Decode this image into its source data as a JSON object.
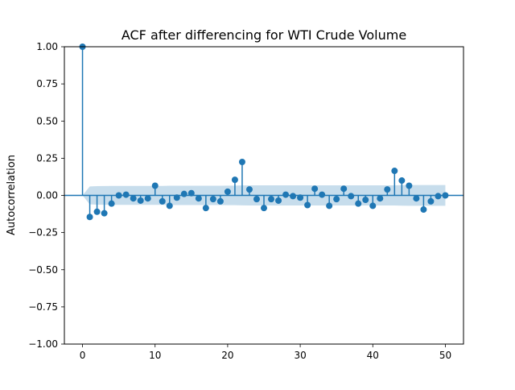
{
  "chart_data": {
    "type": "stem",
    "title": "ACF after differencing for WTI Crude Volume",
    "xlabel": "",
    "ylabel": "Autocorrelation",
    "xlim": [
      -2.5,
      52.5
    ],
    "ylim": [
      -1.0,
      1.0
    ],
    "x_ticks": [
      0,
      10,
      20,
      30,
      40,
      50
    ],
    "x_tick_labels": [
      "0",
      "10",
      "20",
      "30",
      "40",
      "50"
    ],
    "y_ticks": [
      1.0,
      0.75,
      0.5,
      0.25,
      0.0,
      -0.25,
      -0.5,
      -0.75,
      -1.0
    ],
    "y_tick_labels": [
      "1.00",
      "0.75",
      "0.50",
      "0.25",
      "0.00",
      "−0.25",
      "−0.50",
      "−0.75",
      "−1.00"
    ],
    "grid": false,
    "colors": {
      "series": "#1f77b4",
      "confidence_band": "#1f77b4"
    },
    "lags": [
      0,
      1,
      2,
      3,
      4,
      5,
      6,
      7,
      8,
      9,
      10,
      11,
      12,
      13,
      14,
      15,
      16,
      17,
      18,
      19,
      20,
      21,
      22,
      23,
      24,
      25,
      26,
      27,
      28,
      29,
      30,
      31,
      32,
      33,
      34,
      35,
      36,
      37,
      38,
      39,
      40,
      41,
      42,
      43,
      44,
      45,
      46,
      47,
      48,
      49,
      50
    ],
    "values": [
      1.0,
      -0.145,
      -0.11,
      -0.12,
      -0.055,
      0.0,
      0.005,
      -0.02,
      -0.035,
      -0.02,
      0.065,
      -0.04,
      -0.07,
      -0.015,
      0.01,
      0.015,
      -0.02,
      -0.085,
      -0.025,
      -0.04,
      0.025,
      0.105,
      0.225,
      0.04,
      -0.025,
      -0.085,
      -0.025,
      -0.035,
      0.005,
      -0.005,
      -0.015,
      -0.065,
      0.045,
      0.005,
      -0.07,
      -0.025,
      0.045,
      -0.005,
      -0.055,
      -0.03,
      -0.07,
      -0.02,
      0.04,
      0.165,
      0.1,
      0.065,
      -0.02,
      -0.095,
      -0.04,
      -0.005,
      0.0
    ],
    "confidence_band": {
      "lags": [
        0,
        1,
        2,
        3,
        4,
        5,
        6,
        7,
        8,
        9,
        10,
        11,
        12,
        13,
        14,
        15,
        16,
        17,
        18,
        19,
        20,
        21,
        22,
        23,
        24,
        25,
        26,
        27,
        28,
        29,
        30,
        31,
        32,
        33,
        34,
        35,
        36,
        37,
        38,
        39,
        40,
        41,
        42,
        43,
        44,
        45,
        46,
        47,
        48,
        49,
        50
      ],
      "half_width": [
        0.0,
        0.06,
        0.062,
        0.063,
        0.064,
        0.064,
        0.064,
        0.064,
        0.064,
        0.064,
        0.064,
        0.064,
        0.065,
        0.065,
        0.065,
        0.065,
        0.065,
        0.065,
        0.065,
        0.065,
        0.066,
        0.066,
        0.067,
        0.068,
        0.068,
        0.068,
        0.068,
        0.068,
        0.068,
        0.068,
        0.068,
        0.068,
        0.068,
        0.068,
        0.068,
        0.068,
        0.068,
        0.068,
        0.068,
        0.068,
        0.068,
        0.068,
        0.068,
        0.068,
        0.069,
        0.07,
        0.07,
        0.07,
        0.07,
        0.07,
        0.07
      ]
    }
  }
}
